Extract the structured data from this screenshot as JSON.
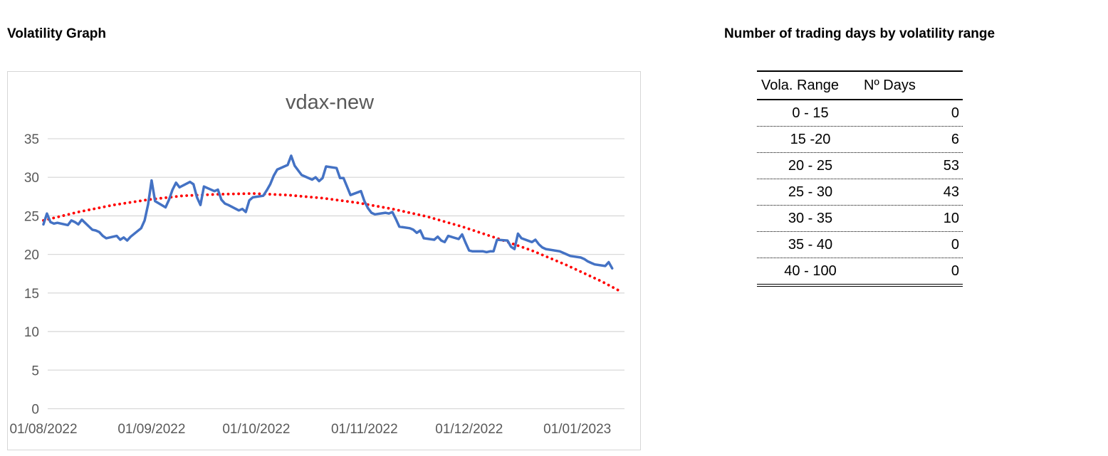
{
  "left_panel": {
    "title": "Volatility Graph"
  },
  "right_panel": {
    "title": "Number of trading days by volatility range"
  },
  "volatility_table": {
    "columns": {
      "range": "Vola. Range",
      "days": "Nº Days"
    },
    "rows": [
      {
        "range": "0 - 15",
        "days": "0"
      },
      {
        "range": "15 -20",
        "days": "6"
      },
      {
        "range": "20 - 25",
        "days": "53"
      },
      {
        "range": "25 - 30",
        "days": "43"
      },
      {
        "range": "30 - 35",
        "days": "10"
      },
      {
        "range": "35 - 40",
        "days": "0"
      },
      {
        "range": "40 - 100",
        "days": "0"
      }
    ]
  },
  "chart_data": {
    "type": "line",
    "title": "vdax-new",
    "xlabel": "",
    "ylabel": "",
    "ylim": [
      0,
      35
    ],
    "y_ticks": [
      35,
      30,
      25,
      20,
      15,
      10,
      5,
      0
    ],
    "x_tick_labels": [
      "01/08/2022",
      "01/09/2022",
      "01/10/2022",
      "01/11/2022",
      "01/12/2022",
      "01/01/2023"
    ],
    "x_tick_day_offsets": [
      0,
      31,
      61,
      92,
      122,
      153
    ],
    "x_axis_span_days": 168,
    "grid": true,
    "legend": "none",
    "axis_text_color": "#595959",
    "grid_color": "#d9d9d9",
    "title_color": "#595959",
    "series": [
      {
        "name": "vdax-new",
        "color": "#4472C4",
        "style": "solid",
        "dates": [
          "2022-08-01",
          "2022-08-02",
          "2022-08-03",
          "2022-08-04",
          "2022-08-05",
          "2022-08-08",
          "2022-08-09",
          "2022-08-10",
          "2022-08-11",
          "2022-08-12",
          "2022-08-15",
          "2022-08-16",
          "2022-08-17",
          "2022-08-18",
          "2022-08-19",
          "2022-08-22",
          "2022-08-23",
          "2022-08-24",
          "2022-08-25",
          "2022-08-26",
          "2022-08-29",
          "2022-08-30",
          "2022-08-31",
          "2022-09-01",
          "2022-09-02",
          "2022-09-05",
          "2022-09-06",
          "2022-09-07",
          "2022-09-08",
          "2022-09-09",
          "2022-09-12",
          "2022-09-13",
          "2022-09-14",
          "2022-09-15",
          "2022-09-16",
          "2022-09-19",
          "2022-09-20",
          "2022-09-21",
          "2022-09-22",
          "2022-09-23",
          "2022-09-26",
          "2022-09-27",
          "2022-09-28",
          "2022-09-29",
          "2022-09-30",
          "2022-10-03",
          "2022-10-04",
          "2022-10-05",
          "2022-10-06",
          "2022-10-07",
          "2022-10-10",
          "2022-10-11",
          "2022-10-12",
          "2022-10-13",
          "2022-10-14",
          "2022-10-17",
          "2022-10-18",
          "2022-10-19",
          "2022-10-20",
          "2022-10-21",
          "2022-10-24",
          "2022-10-25",
          "2022-10-26",
          "2022-10-27",
          "2022-10-28",
          "2022-10-31",
          "2022-11-01",
          "2022-11-02",
          "2022-11-03",
          "2022-11-04",
          "2022-11-07",
          "2022-11-08",
          "2022-11-09",
          "2022-11-10",
          "2022-11-11",
          "2022-11-14",
          "2022-11-15",
          "2022-11-16",
          "2022-11-17",
          "2022-11-18",
          "2022-11-21",
          "2022-11-22",
          "2022-11-23",
          "2022-11-24",
          "2022-11-25",
          "2022-11-28",
          "2022-11-29",
          "2022-11-30",
          "2022-12-01",
          "2022-12-02",
          "2022-12-05",
          "2022-12-06",
          "2022-12-07",
          "2022-12-08",
          "2022-12-09",
          "2022-12-12",
          "2022-12-13",
          "2022-12-14",
          "2022-12-15",
          "2022-12-16",
          "2022-12-19",
          "2022-12-20",
          "2022-12-21",
          "2022-12-22",
          "2022-12-23",
          "2022-12-27",
          "2022-12-28",
          "2022-12-29",
          "2022-12-30",
          "2023-01-02",
          "2023-01-03",
          "2023-01-04",
          "2023-01-05",
          "2023-01-06",
          "2023-01-09",
          "2023-01-10",
          "2023-01-11"
        ],
        "values": [
          23.9,
          25.3,
          24.2,
          24.0,
          24.1,
          23.8,
          24.4,
          24.2,
          23.9,
          24.5,
          23.2,
          23.1,
          22.9,
          22.4,
          22.1,
          22.4,
          21.9,
          22.2,
          21.8,
          22.3,
          23.4,
          24.4,
          26.5,
          29.6,
          26.9,
          26.1,
          27.1,
          28.4,
          29.3,
          28.7,
          29.4,
          29.1,
          27.4,
          26.4,
          28.8,
          28.2,
          28.4,
          27.1,
          26.6,
          26.4,
          25.7,
          25.9,
          25.5,
          27.0,
          27.4,
          27.6,
          28.3,
          29.1,
          30.2,
          31.0,
          31.6,
          32.8,
          31.5,
          30.9,
          30.3,
          29.7,
          30.0,
          29.5,
          29.9,
          31.4,
          31.2,
          29.9,
          29.9,
          28.8,
          27.7,
          28.2,
          26.9,
          26.0,
          25.4,
          25.2,
          25.4,
          25.3,
          25.5,
          24.6,
          23.6,
          23.4,
          23.2,
          22.8,
          23.1,
          22.1,
          21.9,
          22.3,
          21.8,
          21.6,
          22.4,
          22.0,
          22.6,
          21.5,
          20.5,
          20.4,
          20.4,
          20.3,
          20.4,
          20.4,
          21.9,
          21.8,
          21.0,
          20.7,
          22.7,
          22.1,
          21.6,
          21.9,
          21.3,
          20.9,
          20.7,
          20.4,
          20.2,
          20.0,
          19.8,
          19.6,
          19.4,
          19.1,
          18.9,
          18.7,
          18.5,
          19.0,
          18.2
        ]
      },
      {
        "name": "polynomial-trendline",
        "color": "#FF0000",
        "style": "dotted",
        "day_offsets": [
          0,
          10,
          20,
          30,
          40,
          50,
          60,
          70,
          80,
          90,
          100,
          110,
          120,
          130,
          140,
          150,
          160,
          165
        ],
        "values": [
          24.4,
          25.5,
          26.4,
          27.1,
          27.6,
          27.8,
          27.9,
          27.7,
          27.3,
          26.7,
          25.9,
          24.9,
          23.6,
          22.1,
          20.5,
          18.6,
          16.5,
          15.3
        ]
      }
    ]
  }
}
